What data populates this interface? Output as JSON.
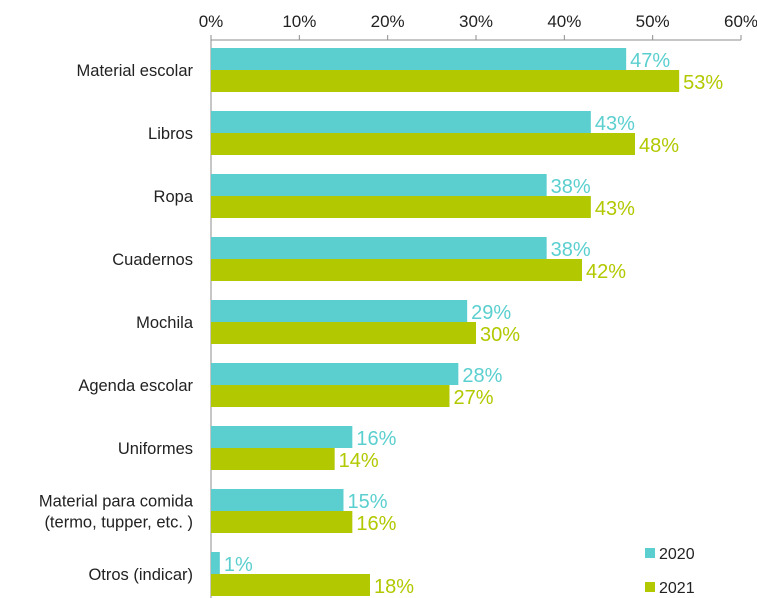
{
  "chart_data": {
    "type": "bar",
    "orientation": "horizontal",
    "categories": [
      [
        "Material escolar"
      ],
      [
        "Libros"
      ],
      [
        "Ropa"
      ],
      [
        "Cuadernos"
      ],
      [
        "Mochila"
      ],
      [
        "Agenda escolar"
      ],
      [
        "Uniformes"
      ],
      [
        "Material para comida",
        "(termo, tupper, etc. )"
      ],
      [
        "Otros (indicar)"
      ]
    ],
    "series": [
      {
        "name": "2020",
        "color": "#5bcfcf",
        "values": [
          47,
          43,
          38,
          38,
          29,
          28,
          16,
          15,
          1
        ]
      },
      {
        "name": "2021",
        "color": "#b2c800",
        "values": [
          53,
          48,
          43,
          42,
          30,
          27,
          14,
          16,
          18
        ]
      }
    ],
    "value_suffix": "%",
    "xlim": [
      0,
      60
    ],
    "xticks": [
      0,
      10,
      20,
      30,
      40,
      50,
      60
    ],
    "axis_position": "top",
    "grid": false,
    "legend_position": "bottom-right",
    "title": "",
    "xlabel": "",
    "ylabel": ""
  }
}
